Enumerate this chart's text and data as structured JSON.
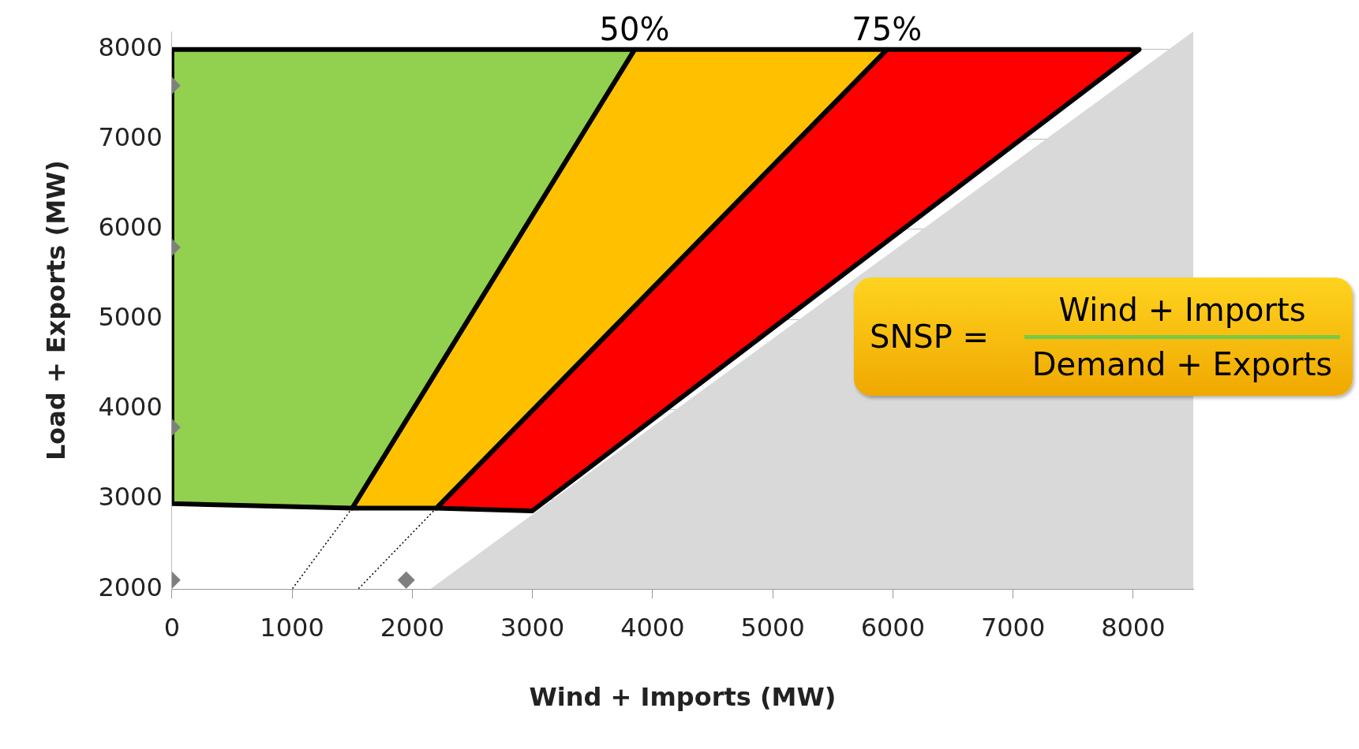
{
  "chart_data": {
    "type": "area",
    "xlabel": "Wind + Imports (MW)",
    "ylabel": "Load + Exports (MW)",
    "xlim": [
      0,
      8500
    ],
    "ylim": [
      2000,
      8200
    ],
    "xticks": [
      0,
      1000,
      2000,
      3000,
      4000,
      5000,
      6000,
      7000,
      8000
    ],
    "yticks": [
      2000,
      3000,
      4000,
      5000,
      6000,
      7000,
      8000
    ],
    "grid": "y",
    "legend": false,
    "series": [
      {
        "color": "#d9d9d9",
        "x": [
          2150,
          8500,
          8500,
          2150
        ],
        "values": [
          2000,
          2000,
          8200,
          2000
        ]
      },
      {
        "color": "#92d050",
        "x": [
          0,
          3850,
          1500,
          0,
          0
        ],
        "values": [
          8000,
          8000,
          2900,
          2950,
          8000
        ]
      },
      {
        "color": "#ffc000",
        "x": [
          3850,
          5950,
          2200,
          1500,
          3850
        ],
        "values": [
          8000,
          8000,
          2900,
          2900,
          8000
        ]
      },
      {
        "color": "#ff0000",
        "x": [
          5950,
          8050,
          3000,
          2200,
          5950
        ],
        "values": [
          8000,
          8000,
          2870,
          2900,
          8000
        ]
      },
      {
        "type": "line",
        "color": "#000000",
        "line_style": "dotted",
        "marker": "none",
        "x": [
          1500,
          1000
        ],
        "values": [
          2900,
          2000
        ]
      },
      {
        "type": "line",
        "color": "#000000",
        "line_style": "dotted",
        "marker": "none",
        "x": [
          2200,
          1550
        ],
        "values": [
          2900,
          2000
        ]
      },
      {
        "type": "scatter",
        "color": "#7f7f7f",
        "marker": "diamond",
        "x": [
          0,
          0,
          0,
          0,
          1950
        ],
        "values": [
          7600,
          5800,
          3800,
          2100,
          2100
        ]
      }
    ],
    "annotations": [
      {
        "text": "50%",
        "x": 3850,
        "y": 8000
      },
      {
        "text": "75%",
        "x": 5950,
        "y": 8000
      },
      "SNSP =",
      "Wind + Imports",
      "Demand + Exports"
    ]
  }
}
